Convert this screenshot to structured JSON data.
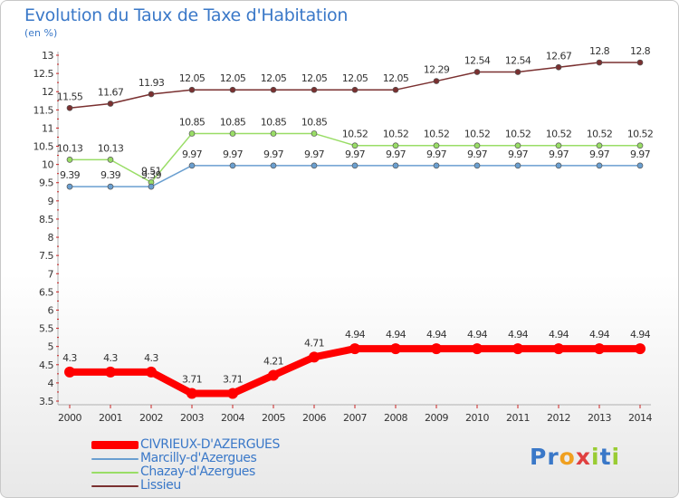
{
  "chart_data": {
    "type": "line",
    "title": "Evolution du Taux de Taxe d'Habitation",
    "subtitle": "(en %)",
    "x": [
      "2000",
      "2001",
      "2002",
      "2003",
      "2004",
      "2005",
      "2006",
      "2007",
      "2008",
      "2009",
      "2010",
      "2011",
      "2012",
      "2013",
      "2014"
    ],
    "ylim": [
      3.5,
      13
    ],
    "yticks": [
      "3.5",
      "4",
      "4.5",
      "5",
      "5.5",
      "6",
      "6.5",
      "7",
      "7.5",
      "8",
      "8.5",
      "9",
      "9.5",
      "10",
      "10.5",
      "11",
      "11.5",
      "12",
      "12.5",
      "13"
    ],
    "grid": false,
    "series": [
      {
        "name": "CIVRIEUX-D'AZERGUES",
        "color": "#ff0000",
        "values": [
          4.3,
          4.3,
          4.3,
          3.71,
          3.71,
          4.21,
          4.71,
          4.94,
          4.94,
          4.94,
          4.94,
          4.94,
          4.94,
          4.94,
          4.94
        ],
        "labels": [
          "4.3",
          "4.3",
          "4.3",
          "3.71",
          "3.71",
          "4.21",
          "4.71",
          "4.94",
          "4.94",
          "4.94",
          "4.94",
          "4.94",
          "4.94",
          "4.94",
          "4.94"
        ]
      },
      {
        "name": "Marcilly-d'Azergues",
        "color": "#6a9fd0",
        "values": [
          9.39,
          9.39,
          9.39,
          9.97,
          9.97,
          9.97,
          9.97,
          9.97,
          9.97,
          9.97,
          9.97,
          9.97,
          9.97,
          9.97,
          9.97
        ],
        "labels": [
          "9.39",
          "9.39",
          "9.39",
          "9.97",
          "9.97",
          "9.97",
          "9.97",
          "9.97",
          "9.97",
          "9.97",
          "9.97",
          "9.97",
          "9.97",
          "9.97",
          "9.97"
        ]
      },
      {
        "name": "Chazay-d'Azergues",
        "color": "#99dd66",
        "values": [
          10.13,
          10.13,
          9.51,
          10.85,
          10.85,
          10.85,
          10.85,
          10.52,
          10.52,
          10.52,
          10.52,
          10.52,
          10.52,
          10.52,
          10.52
        ],
        "labels": [
          "10.13",
          "10.13",
          "9.51",
          "10.85",
          "10.85",
          "10.85",
          "10.85",
          "10.52",
          "10.52",
          "10.52",
          "10.52",
          "10.52",
          "10.52",
          "10.52",
          "10.52"
        ]
      },
      {
        "name": "Lissieu",
        "color": "#7a3030",
        "values": [
          11.55,
          11.67,
          11.93,
          12.05,
          12.05,
          12.05,
          12.05,
          12.05,
          12.05,
          12.29,
          12.54,
          12.54,
          12.67,
          12.8,
          12.8
        ],
        "labels": [
          "11.55",
          "11.67",
          "11.93",
          "12.05",
          "12.05",
          "12.05",
          "12.05",
          "12.05",
          "12.05",
          "12.29",
          "12.54",
          "12.54",
          "12.67",
          "12.8",
          "12.8"
        ]
      }
    ],
    "legend_position": "bottom-left"
  },
  "logo": {
    "text": "Proxiti",
    "letters": [
      "P",
      "r",
      "o",
      "x",
      "i",
      "t",
      "i"
    ],
    "colors": [
      "#3a78c8",
      "#3a78c8",
      "#f0a020",
      "#e04040",
      "#99cc33",
      "#3a78c8",
      "#99cc33"
    ]
  }
}
